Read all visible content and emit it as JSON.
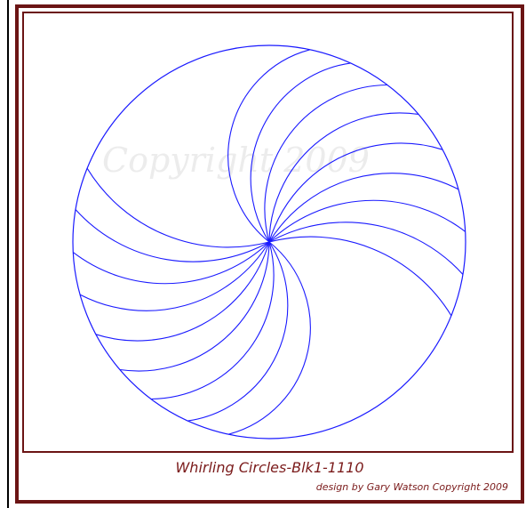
{
  "watermark": "Copyright 2009",
  "caption": {
    "title": "Whirling Circles-Blk1-1110",
    "credit": "design by Gary Watson Copyright 2009"
  }
}
